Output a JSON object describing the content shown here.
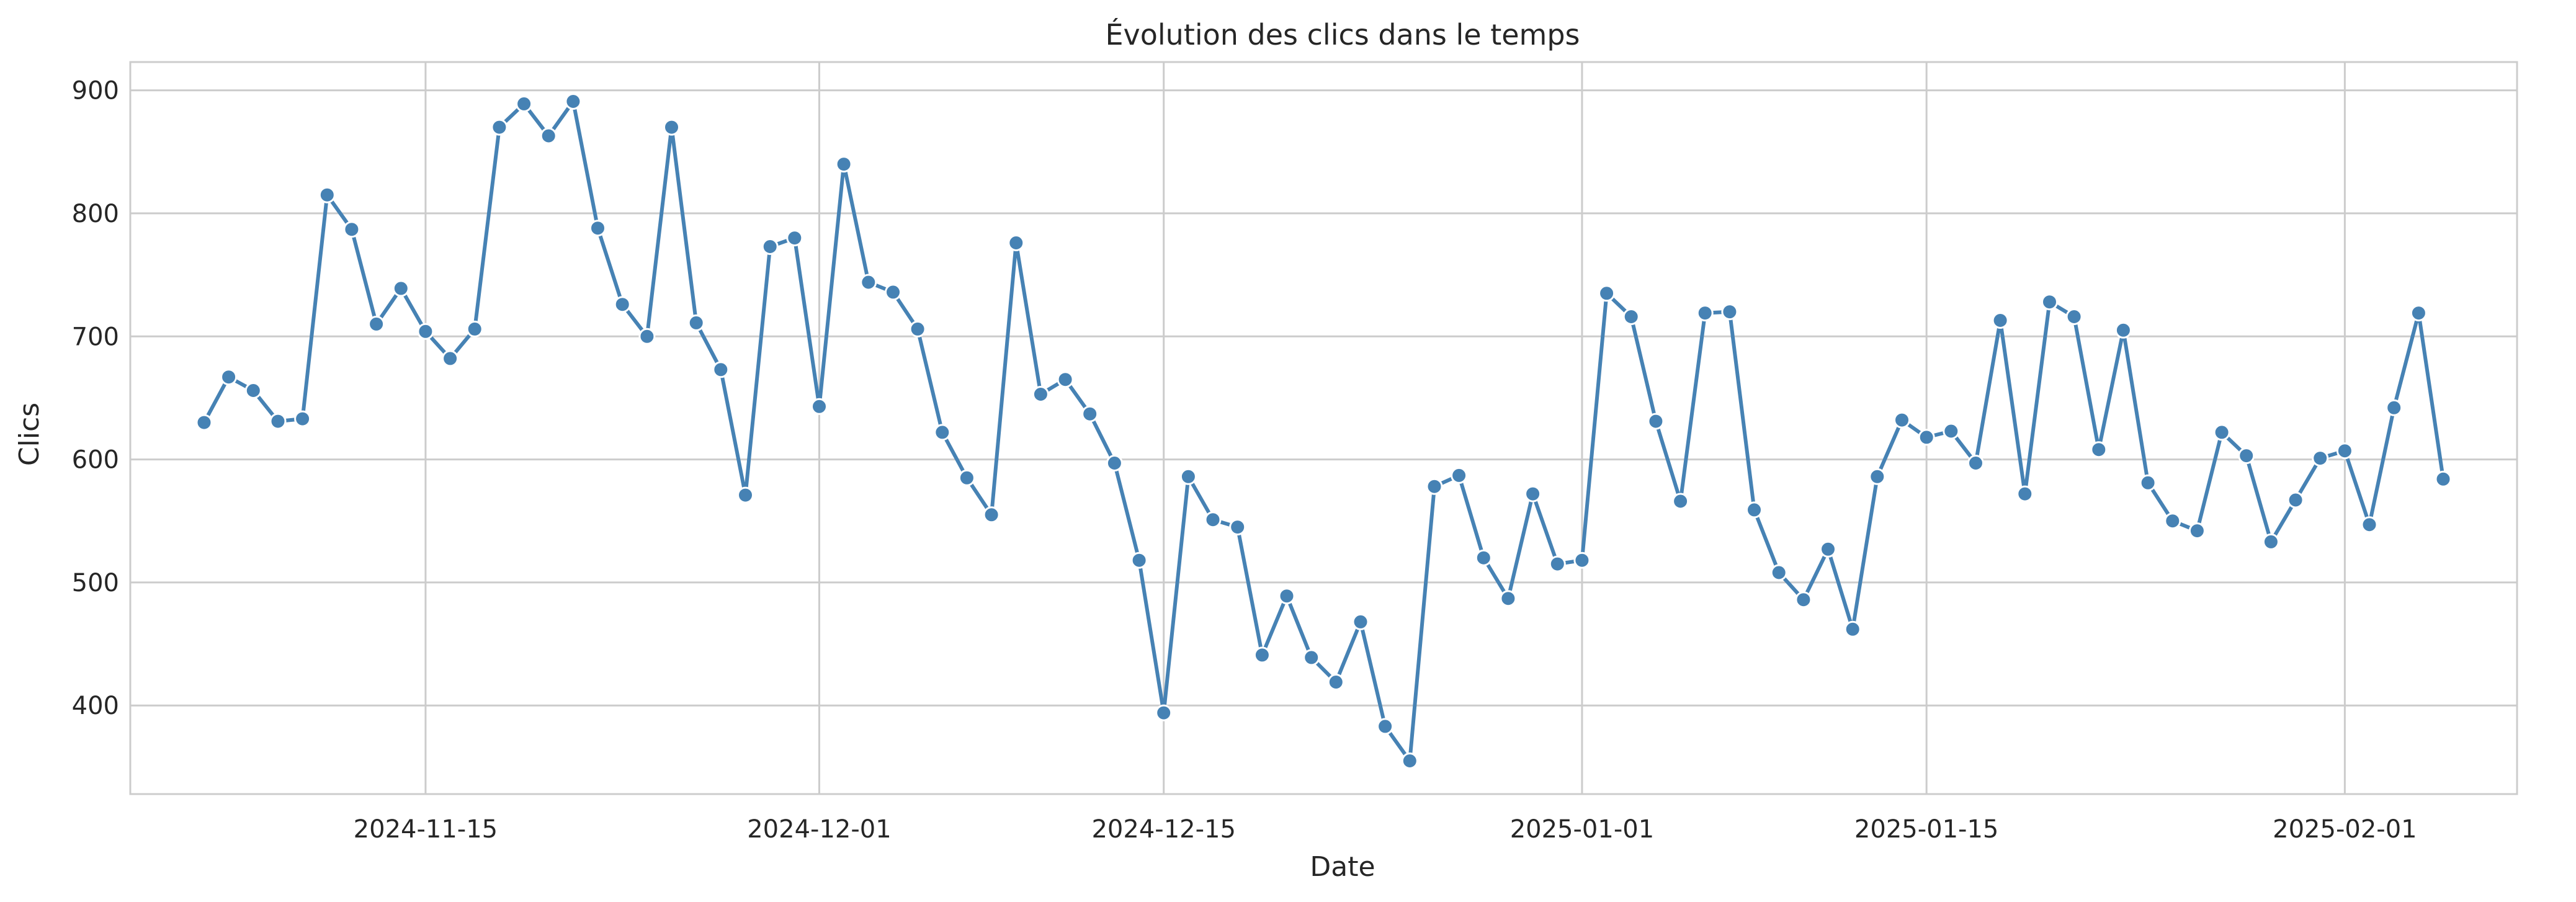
{
  "chart_data": {
    "type": "line",
    "title": "Évolution des clics dans le temps",
    "xlabel": "Date",
    "ylabel": "Clics",
    "x_start": "2024-11-06",
    "x_ticks": [
      "2024-11-15",
      "2024-12-01",
      "2024-12-15",
      "2025-01-01",
      "2025-01-15",
      "2025-02-01"
    ],
    "y_ticks": [
      400,
      500,
      600,
      700,
      800,
      900
    ],
    "ylim": [
      328,
      923
    ],
    "xlim": [
      "2024-11-03",
      "2025-02-08"
    ],
    "grid": true,
    "color": "#4682b4",
    "series": [
      {
        "values": [
          630,
          667,
          656,
          631,
          633,
          815,
          787,
          710,
          739,
          704,
          682,
          706,
          870,
          889,
          863,
          891,
          788,
          726,
          700,
          870,
          711,
          673,
          571,
          773,
          780,
          643,
          840,
          744,
          736,
          706,
          622,
          585,
          555,
          776,
          653,
          665,
          637,
          597,
          518,
          394,
          586,
          551,
          545,
          441,
          489,
          439,
          419,
          468,
          383,
          355,
          578,
          587,
          520,
          487,
          572,
          515,
          518,
          735,
          716,
          631,
          566,
          719,
          720,
          559,
          508,
          486,
          527,
          462,
          586,
          632,
          618,
          623,
          597,
          713,
          572,
          728,
          716,
          608,
          705,
          581,
          550,
          542,
          622,
          603,
          533,
          567,
          601,
          607,
          547,
          642,
          719,
          584
        ]
      }
    ]
  }
}
